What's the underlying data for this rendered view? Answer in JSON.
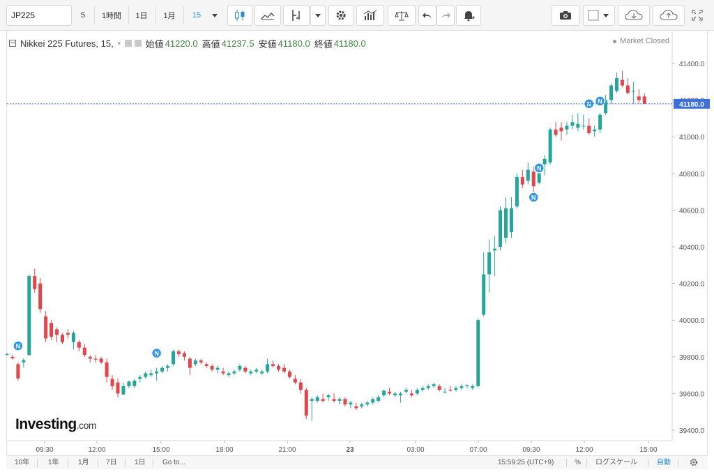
{
  "toolbar": {
    "symbol": "JP225",
    "intervals": [
      "5",
      "1時間",
      "1日",
      "1月",
      "15"
    ],
    "active_interval": "15",
    "icons": [
      "dropdown-caret-icon",
      "candlestick-icon",
      "line-chart-icon",
      "indicator-icon",
      "dropdown-caret-icon",
      "settings-gear-icon",
      "bar-volume-icon",
      "compare-scale-icon",
      "undo-arrow-icon",
      "redo-arrow-icon",
      "alert-bell-icon",
      "camera-icon",
      "color-square-icon",
      "cloud-download-icon",
      "cloud-upload-icon",
      "fullscreen-icon"
    ]
  },
  "legend": {
    "symbol_name": "Nikkei 225 Futures, 15,",
    "open_label": "始値",
    "open": "41220.0",
    "high_label": "高値",
    "high": "41237.5",
    "low_label": "安値",
    "low": "41180.0",
    "close_label": "終値",
    "close": "41180.0"
  },
  "market_status": "Market Closed",
  "current_price": "41180.0",
  "watermark": {
    "brand": "Investing",
    "suffix": ".com"
  },
  "y_axis": {
    "ticks": [
      "41400.0",
      "41200.0",
      "41000.0",
      "40800.0",
      "40600.0",
      "40400.0",
      "40200.0",
      "40000.0",
      "39800.0",
      "39600.0",
      "39400.0"
    ]
  },
  "x_axis": {
    "ticks": [
      "09:30",
      "12:00",
      "15:00",
      "18:00",
      "21:00",
      "23",
      "03:00",
      "07:00",
      "09:30",
      "12:00",
      "15:00"
    ]
  },
  "news_marker_label": "N",
  "bottombar": {
    "ranges": [
      "10年",
      "1年",
      "1月",
      "7日",
      "1日",
      "Go to..."
    ],
    "time": "15:59:25 (UTC+9)",
    "percent": "%",
    "log_scale": "ログスケール",
    "auto": "自動"
  },
  "colors": {
    "up": "#26a69a",
    "down": "#e0474c",
    "price_line": "#3f6fd8",
    "price_label_bg": "#3f6fd8",
    "news_marker": "#2f97e5"
  },
  "chart_data": {
    "type": "candlestick",
    "ylim": [
      39370,
      41550
    ],
    "candles": [
      [
        39812,
        39822,
        39805,
        39815
      ],
      [
        39800,
        39810,
        39785,
        39792
      ],
      [
        39760,
        39770,
        39670,
        39682
      ],
      [
        39770,
        39792,
        39742,
        39782
      ],
      [
        39810,
        40250,
        39805,
        40240
      ],
      [
        40240,
        40280,
        40150,
        40170
      ],
      [
        40200,
        40230,
        40040,
        40060
      ],
      [
        40020,
        40050,
        39880,
        39900
      ],
      [
        39985,
        40000,
        39890,
        39910
      ],
      [
        39950,
        39960,
        39880,
        39920
      ],
      [
        39920,
        39930,
        39870,
        39880
      ],
      [
        39930,
        39950,
        39900,
        39920
      ],
      [
        39880,
        39940,
        39840,
        39930
      ],
      [
        39880,
        39890,
        39830,
        39850
      ],
      [
        39850,
        39870,
        39800,
        39810
      ],
      [
        39800,
        39810,
        39770,
        39790
      ],
      [
        39790,
        39810,
        39770,
        39785
      ],
      [
        39790,
        39800,
        39760,
        39770
      ],
      [
        39770,
        39790,
        39660,
        39690
      ],
      [
        39680,
        39700,
        39620,
        39640
      ],
      [
        39660,
        39680,
        39580,
        39600
      ],
      [
        39595,
        39660,
        39590,
        39640
      ],
      [
        39640,
        39670,
        39630,
        39665
      ],
      [
        39640,
        39680,
        39630,
        39670
      ],
      [
        39680,
        39700,
        39660,
        39690
      ],
      [
        39690,
        39720,
        39680,
        39710
      ],
      [
        39700,
        39730,
        39690,
        39710
      ],
      [
        39710,
        39740,
        39670,
        39720
      ],
      [
        39720,
        39750,
        39710,
        39740
      ],
      [
        39740,
        39760,
        39720,
        39750
      ],
      [
        39760,
        39840,
        39750,
        39830
      ],
      [
        39830,
        39840,
        39800,
        39815
      ],
      [
        39820,
        39830,
        39780,
        39800
      ],
      [
        39790,
        39800,
        39700,
        39740
      ],
      [
        39760,
        39790,
        39750,
        39780
      ],
      [
        39780,
        39790,
        39760,
        39770
      ],
      [
        39760,
        39770,
        39740,
        39750
      ],
      [
        39750,
        39760,
        39720,
        39730
      ],
      [
        39730,
        39750,
        39710,
        39740
      ],
      [
        39720,
        39740,
        39700,
        39710
      ],
      [
        39700,
        39720,
        39690,
        39710
      ],
      [
        39710,
        39730,
        39700,
        39720
      ],
      [
        39730,
        39760,
        39720,
        39750
      ],
      [
        39740,
        39750,
        39710,
        39720
      ],
      [
        39710,
        39730,
        39700,
        39720
      ],
      [
        39720,
        39740,
        39710,
        39730
      ],
      [
        39710,
        39730,
        39700,
        39720
      ],
      [
        39720,
        39790,
        39710,
        39760
      ],
      [
        39760,
        39780,
        39740,
        39750
      ],
      [
        39750,
        39760,
        39720,
        39730
      ],
      [
        39740,
        39760,
        39710,
        39720
      ],
      [
        39720,
        39730,
        39680,
        39690
      ],
      [
        39680,
        39700,
        39650,
        39660
      ],
      [
        39660,
        39680,
        39600,
        39620
      ],
      [
        39620,
        39630,
        39460,
        39480
      ],
      [
        39560,
        39580,
        39450,
        39570
      ],
      [
        39560,
        39590,
        39550,
        39580
      ],
      [
        39570,
        39600,
        39550,
        39560
      ],
      [
        39580,
        39600,
        39560,
        39590
      ],
      [
        39570,
        39600,
        39550,
        39560
      ],
      [
        39560,
        39580,
        39540,
        39570
      ],
      [
        39570,
        39580,
        39530,
        39540
      ],
      [
        39540,
        39560,
        39520,
        39550
      ],
      [
        39530,
        39550,
        39510,
        39520
      ],
      [
        39530,
        39550,
        39520,
        39540
      ],
      [
        39540,
        39560,
        39530,
        39550
      ],
      [
        39550,
        39580,
        39540,
        39570
      ],
      [
        39560,
        39590,
        39550,
        39580
      ],
      [
        39590,
        39620,
        39580,
        39615
      ],
      [
        39610,
        39630,
        39590,
        39600
      ],
      [
        39590,
        39610,
        39580,
        39600
      ],
      [
        39590,
        39610,
        39550,
        39600
      ],
      [
        39610,
        39630,
        39600,
        39620
      ],
      [
        39600,
        39620,
        39580,
        39590
      ],
      [
        39600,
        39630,
        39590,
        39620
      ],
      [
        39620,
        39640,
        39610,
        39630
      ],
      [
        39630,
        39650,
        39620,
        39640
      ],
      [
        39640,
        39660,
        39630,
        39650
      ],
      [
        39640,
        39650,
        39610,
        39620
      ],
      [
        39610,
        39630,
        39600,
        39610
      ],
      [
        39620,
        39640,
        39610,
        39615
      ],
      [
        39620,
        39640,
        39610,
        39630
      ],
      [
        39630,
        39650,
        39620,
        39640
      ],
      [
        39640,
        39650,
        39630,
        39645
      ],
      [
        39630,
        39650,
        39620,
        39640
      ],
      [
        39640,
        40010,
        39635,
        40000
      ],
      [
        40030,
        40370,
        40020,
        40250
      ],
      [
        40250,
        40440,
        40150,
        40370
      ],
      [
        40380,
        40460,
        40240,
        40390
      ],
      [
        40400,
        40620,
        40380,
        40600
      ],
      [
        40450,
        40670,
        40420,
        40610
      ],
      [
        40480,
        40670,
        40450,
        40610
      ],
      [
        40620,
        40800,
        40610,
        40780
      ],
      [
        40780,
        40820,
        40720,
        40740
      ],
      [
        40760,
        40860,
        40740,
        40820
      ],
      [
        40810,
        40840,
        40700,
        40730
      ],
      [
        40750,
        40860,
        40740,
        40850
      ],
      [
        40850,
        40900,
        40790,
        40880
      ],
      [
        40860,
        41050,
        40850,
        41040
      ],
      [
        41040,
        41080,
        41000,
        41010
      ],
      [
        41050,
        41080,
        40980,
        41030
      ],
      [
        41040,
        41080,
        41010,
        41060
      ],
      [
        41060,
        41120,
        41040,
        41080
      ],
      [
        41050,
        41130,
        41030,
        41070
      ],
      [
        41060,
        41120,
        41040,
        41060
      ],
      [
        41060,
        41100,
        41010,
        41020
      ],
      [
        41030,
        41060,
        41000,
        41040
      ],
      [
        41040,
        41130,
        41020,
        41120
      ],
      [
        41130,
        41230,
        41120,
        41200
      ],
      [
        41200,
        41290,
        41180,
        41280
      ],
      [
        41250,
        41350,
        41240,
        41320
      ],
      [
        41310,
        41360,
        41270,
        41280
      ],
      [
        41280,
        41320,
        41230,
        41240
      ],
      [
        41250,
        41300,
        41180,
        41250
      ],
      [
        41220,
        41260,
        41180,
        41200
      ],
      [
        41220,
        41238,
        41180,
        41180
      ]
    ],
    "news_markers": [
      {
        "candle": 2,
        "price": 39860
      },
      {
        "candle": 27,
        "price": 39820
      },
      {
        "candle": 95,
        "price": 40670
      },
      {
        "candle": 96,
        "price": 40830
      },
      {
        "candle": 105,
        "price": 41180
      },
      {
        "candle": 107,
        "price": 41195
      }
    ]
  }
}
